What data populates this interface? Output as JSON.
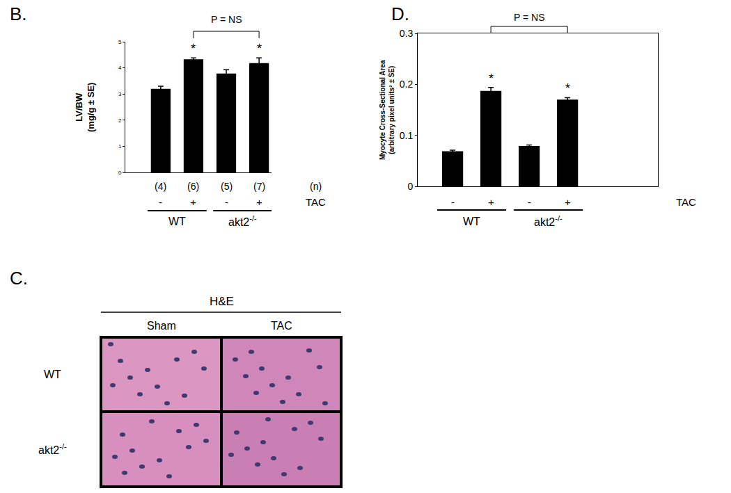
{
  "chart_data": [
    {
      "type": "bar",
      "panel_label": "B.",
      "y_label": [
        "LV/BW",
        "(mg/g ± SE)"
      ],
      "categories": [
        "-",
        "+",
        "-",
        "+"
      ],
      "values": [
        3.2,
        4.33,
        3.78,
        4.18
      ],
      "errors": [
        0.1,
        0.05,
        0.15,
        0.2
      ],
      "color": "#000000",
      "ylim": [
        0,
        5
      ],
      "yticks": [
        0,
        1,
        2,
        3,
        4,
        5
      ],
      "n_labels": [
        "(4)",
        "(6)",
        "(5)",
        "(7)"
      ],
      "n_title": "(n)",
      "category_title": "TAC",
      "groups": [
        {
          "label": "WT",
          "size": 2
        },
        {
          "label": "akt2",
          "superscript": "-/-",
          "size": 2
        }
      ],
      "significant": [
        false,
        true,
        false,
        true
      ],
      "significance_mark": "*",
      "comparison": {
        "label": "P = NS",
        "between": [
          1,
          3
        ]
      }
    },
    {
      "type": "bar",
      "panel_label": "D.",
      "y_label": [
        "Myocyte Cross-Sectional Area",
        "(arbitrary pixel units² ± SE)"
      ],
      "categories": [
        "-",
        "+",
        "-",
        "+"
      ],
      "values": [
        0.069,
        0.187,
        0.079,
        0.17
      ],
      "errors": [
        0.002,
        0.007,
        0.002,
        0.004
      ],
      "color": "#000000",
      "ylim": [
        0,
        0.3
      ],
      "yticks": [
        0,
        0.1,
        0.2,
        0.3
      ],
      "category_title": "TAC",
      "groups": [
        {
          "label": "WT",
          "size": 2
        },
        {
          "label": "akt2",
          "superscript": "-/-",
          "size": 2
        }
      ],
      "significant": [
        false,
        true,
        false,
        true
      ],
      "significance_mark": "*",
      "comparison": {
        "label": "P = NS",
        "between": [
          1,
          3
        ]
      }
    }
  ],
  "histology": {
    "panel_label": "C.",
    "stain": "H&E",
    "columns": [
      "Sham",
      "TAC"
    ],
    "rows": [
      {
        "label": "WT"
      },
      {
        "label": "akt2",
        "superscript": "-/-"
      }
    ]
  }
}
